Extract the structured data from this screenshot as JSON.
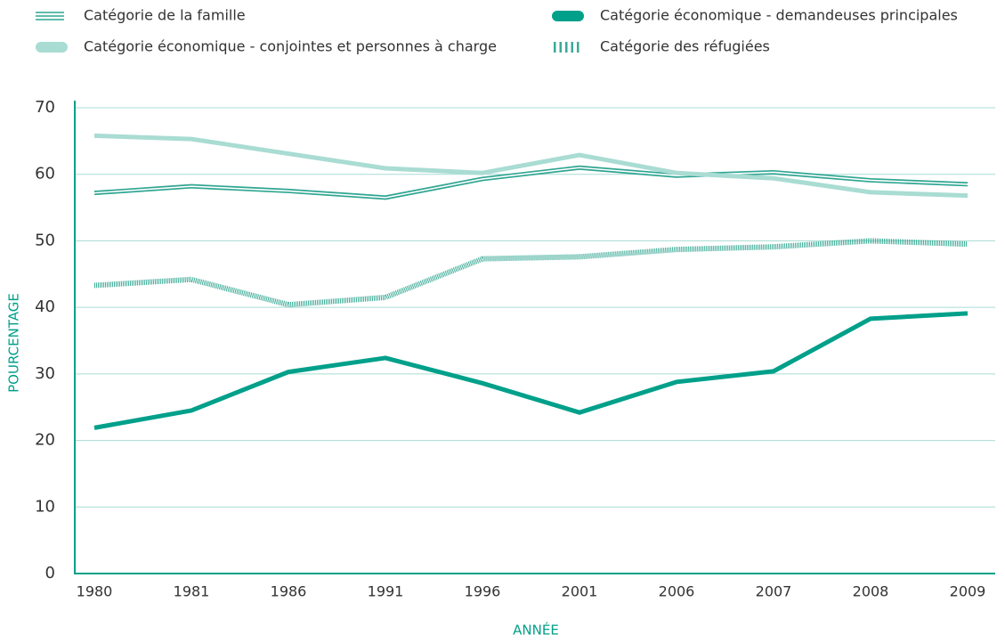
{
  "chart_data": {
    "type": "line",
    "categories": [
      "1980",
      "1981",
      "1986",
      "1991",
      "1996",
      "2001",
      "2006",
      "2007",
      "2008",
      "2009"
    ],
    "series": [
      {
        "name": "Catégorie de la famille",
        "color": "#2fa592",
        "style": "double",
        "values": [
          57.2,
          58.2,
          57.5,
          56.5,
          59.3,
          61,
          59.8,
          60.3,
          59.1,
          58.5
        ]
      },
      {
        "name": "Catégorie économique - conjointes et personnes à charge",
        "color": "#a9dcd3",
        "style": "thick",
        "values": [
          65.8,
          65.3,
          63.1,
          60.9,
          60.2,
          62.9,
          60.2,
          59.4,
          57.3,
          56.8
        ]
      },
      {
        "name": "Catégorie économique - demandeuses principales",
        "color": "#00a08a",
        "style": "thick",
        "values": [
          21.9,
          24.5,
          30.3,
          32.4,
          28.6,
          24.2,
          28.8,
          30.4,
          38.3,
          39.1
        ]
      },
      {
        "name": "Catégorie des réfugiées",
        "color": "#3aaa96",
        "style": "dotted",
        "values": [
          43.3,
          44.2,
          40.4,
          41.5,
          47.3,
          47.6,
          48.7,
          49.1,
          50,
          49.5
        ]
      }
    ],
    "ylim": [
      0,
      70
    ],
    "yticks": [
      0,
      10,
      20,
      30,
      40,
      50,
      60,
      70
    ],
    "grid": true,
    "xlabel": "ANNÉE",
    "ylabel": "POURCENTAGE"
  }
}
